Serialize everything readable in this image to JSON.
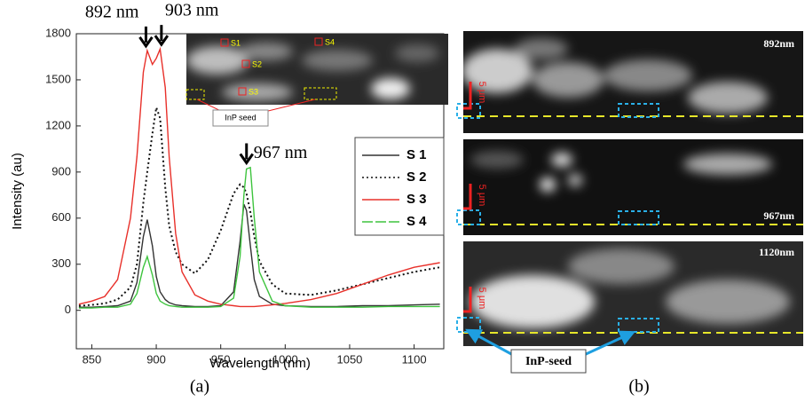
{
  "chart_data": {
    "type": "line",
    "x_label": "Wavelength (nm)",
    "y_label": "Intensity (au)",
    "x": [
      840,
      850,
      860,
      870,
      880,
      885,
      890,
      893,
      897,
      900,
      903,
      907,
      910,
      915,
      920,
      930,
      940,
      950,
      960,
      965,
      968,
      970,
      973,
      976,
      980,
      990,
      1000,
      1020,
      1040,
      1060,
      1080,
      1100,
      1120
    ],
    "series": [
      {
        "name": "S 1",
        "color": "#333333",
        "line_style": "solid",
        "values": [
          20,
          20,
          25,
          30,
          60,
          180,
          480,
          590,
          420,
          220,
          120,
          70,
          50,
          35,
          30,
          25,
          25,
          30,
          120,
          450,
          690,
          650,
          420,
          200,
          90,
          40,
          30,
          25,
          25,
          30,
          30,
          35,
          40
        ]
      },
      {
        "name": "S 2",
        "color": "#111111",
        "line_style": "dotted",
        "values": [
          30,
          35,
          45,
          70,
          150,
          300,
          700,
          900,
          1150,
          1320,
          1250,
          800,
          550,
          380,
          300,
          240,
          330,
          520,
          760,
          820,
          800,
          760,
          640,
          480,
          320,
          170,
          110,
          100,
          130,
          170,
          210,
          250,
          280
        ]
      },
      {
        "name": "S 3",
        "color": "#e8302a",
        "line_style": "solid",
        "values": [
          40,
          60,
          90,
          200,
          600,
          1000,
          1550,
          1690,
          1600,
          1640,
          1700,
          1450,
          1000,
          500,
          250,
          100,
          60,
          40,
          30,
          25,
          25,
          25,
          25,
          25,
          28,
          35,
          45,
          70,
          110,
          170,
          230,
          280,
          310
        ]
      },
      {
        "name": "S 4",
        "color": "#3ec43e",
        "line_style": "dashed",
        "values": [
          15,
          15,
          20,
          20,
          40,
          110,
          280,
          350,
          230,
          110,
          60,
          40,
          30,
          25,
          20,
          20,
          20,
          25,
          80,
          350,
          750,
          920,
          930,
          600,
          250,
          60,
          30,
          20,
          20,
          20,
          25,
          25,
          25
        ]
      }
    ],
    "xlim": [
      838,
      1123
    ],
    "ylim": [
      -250,
      1800
    ],
    "xticks": [
      850,
      900,
      950,
      1000,
      1050,
      1100
    ],
    "yticks": [
      0,
      300,
      600,
      900,
      1200,
      1500,
      1800
    ],
    "legend": "right",
    "annotations": [
      {
        "text": "892 nm",
        "x": 892,
        "y": 1720
      },
      {
        "text": "903 nm",
        "x": 904,
        "y": 1730
      },
      {
        "text": "967 nm",
        "x": 970,
        "y": 960
      }
    ]
  },
  "figure": {
    "panel_labels": [
      "(a)",
      "(b)"
    ],
    "inset": {
      "spots": [
        "S1",
        "S2",
        "S3",
        "S4"
      ],
      "seed_label": "InP seed"
    },
    "panels": [
      "892nm",
      "967nm",
      "1120nm"
    ],
    "scale_bar": "5 μm",
    "seed_label": "InP-seed"
  }
}
